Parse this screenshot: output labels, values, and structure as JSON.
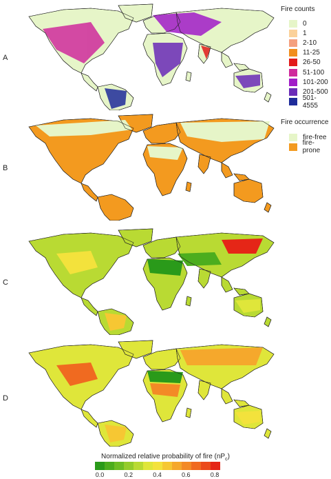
{
  "panels": [
    {
      "letter": "A",
      "scheme": "counts"
    },
    {
      "letter": "B",
      "scheme": "occurrence"
    },
    {
      "letter": "C",
      "scheme": "prob1"
    },
    {
      "letter": "D",
      "scheme": "prob2"
    }
  ],
  "legend_counts": {
    "title": "Fire counts",
    "items": [
      {
        "label": "0",
        "color": "#e6f5c8"
      },
      {
        "label": "1",
        "color": "#fbd19a"
      },
      {
        "label": "2-10",
        "color": "#f4a07f"
      },
      {
        "label": "11-25",
        "color": "#f18e1d"
      },
      {
        "label": "26-50",
        "color": "#e21b1b"
      },
      {
        "label": "51-100",
        "color": "#cf2a9c"
      },
      {
        "label": "101-200",
        "color": "#a11cc8"
      },
      {
        "label": "201-500",
        "color": "#6a2bb8"
      },
      {
        "label": "501-4555",
        "color": "#1f2c9a"
      }
    ]
  },
  "legend_occurrence": {
    "title": "Fire occurrence",
    "items": [
      {
        "label": "fire-free",
        "color": "#e6f5c8"
      },
      {
        "label": "fire-prone",
        "color": "#f39a1f"
      }
    ]
  },
  "probability_scale": {
    "title": "Normalized relative probability of fire (nP",
    "title_sub": "c",
    "title_end": ")",
    "colors": [
      "#2a9a1a",
      "#4cad1e",
      "#6dbd24",
      "#94cc2b",
      "#b9da33",
      "#dfe63a",
      "#f3e23c",
      "#f6c733",
      "#f5a82c",
      "#f38a26",
      "#f06a20",
      "#eb4a1b",
      "#e52617"
    ],
    "ticks": [
      "0.0",
      "0.2",
      "0.4",
      "0.6",
      "0.8"
    ]
  }
}
